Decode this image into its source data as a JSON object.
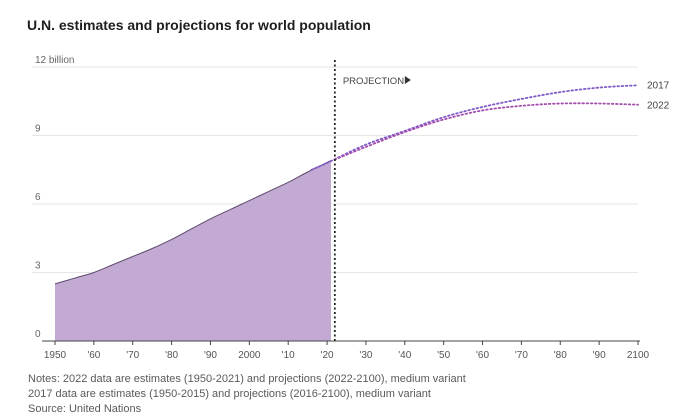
{
  "chart_data": {
    "type": "area",
    "title": "U.N. estimates and projections for world population",
    "ylim": [
      0,
      12
    ],
    "yticks": [
      {
        "value": 0,
        "label": "0"
      },
      {
        "value": 3,
        "label": "3"
      },
      {
        "value": 6,
        "label": "6"
      },
      {
        "value": 9,
        "label": "9"
      },
      {
        "value": 12,
        "label": "12 billion"
      }
    ],
    "xlim": [
      1950,
      2100
    ],
    "xticks": [
      {
        "value": 1950,
        "label": "1950"
      },
      {
        "value": 1960,
        "label": "'60"
      },
      {
        "value": 1970,
        "label": "'70"
      },
      {
        "value": 1980,
        "label": "'80"
      },
      {
        "value": 1990,
        "label": "'90"
      },
      {
        "value": 2000,
        "label": "2000"
      },
      {
        "value": 2010,
        "label": "'10"
      },
      {
        "value": 2020,
        "label": "'20"
      },
      {
        "value": 2030,
        "label": "'30"
      },
      {
        "value": 2040,
        "label": "'40"
      },
      {
        "value": 2050,
        "label": "'50"
      },
      {
        "value": 2060,
        "label": "'60"
      },
      {
        "value": 2070,
        "label": "'70"
      },
      {
        "value": 2080,
        "label": "'80"
      },
      {
        "value": 2090,
        "label": "'90"
      },
      {
        "value": 2100,
        "label": "2100"
      }
    ],
    "projection_start": 2022,
    "projection_label": "PROJECTION",
    "estimates": {
      "x": [
        1950,
        1955,
        1960,
        1965,
        1970,
        1975,
        1980,
        1985,
        1990,
        1995,
        2000,
        2005,
        2010,
        2015,
        2021
      ],
      "y": [
        2.5,
        2.75,
        3.0,
        3.35,
        3.7,
        4.05,
        4.45,
        4.9,
        5.35,
        5.75,
        6.15,
        6.55,
        6.95,
        7.4,
        7.9
      ]
    },
    "series": [
      {
        "name": "2017",
        "label": "2017",
        "x": [
          2016,
          2020,
          2030,
          2040,
          2050,
          2060,
          2070,
          2080,
          2090,
          2100
        ],
        "y": [
          7.5,
          7.8,
          8.6,
          9.2,
          9.8,
          10.25,
          10.6,
          10.9,
          11.1,
          11.2
        ]
      },
      {
        "name": "2022",
        "label": "2022",
        "x": [
          2022,
          2030,
          2040,
          2050,
          2060,
          2070,
          2080,
          2090,
          2100
        ],
        "y": [
          7.95,
          8.5,
          9.15,
          9.7,
          10.1,
          10.3,
          10.4,
          10.4,
          10.35
        ]
      }
    ]
  },
  "notes": [
    "Notes: 2022 data are estimates (1950-2021) and projections (2022-2100), medium variant",
    "2017 data are estimates (1950-2015) and projections (2016-2100), medium variant",
    "Source: United Nations"
  ],
  "colors": {
    "area_fill": "#c3aad3",
    "area_line": "#5e4a6e",
    "series_2017": "#8058c8",
    "series_2022": "#a34fae",
    "grid": "#e6e6e6",
    "axis": "#444444",
    "divider": "#222222"
  }
}
